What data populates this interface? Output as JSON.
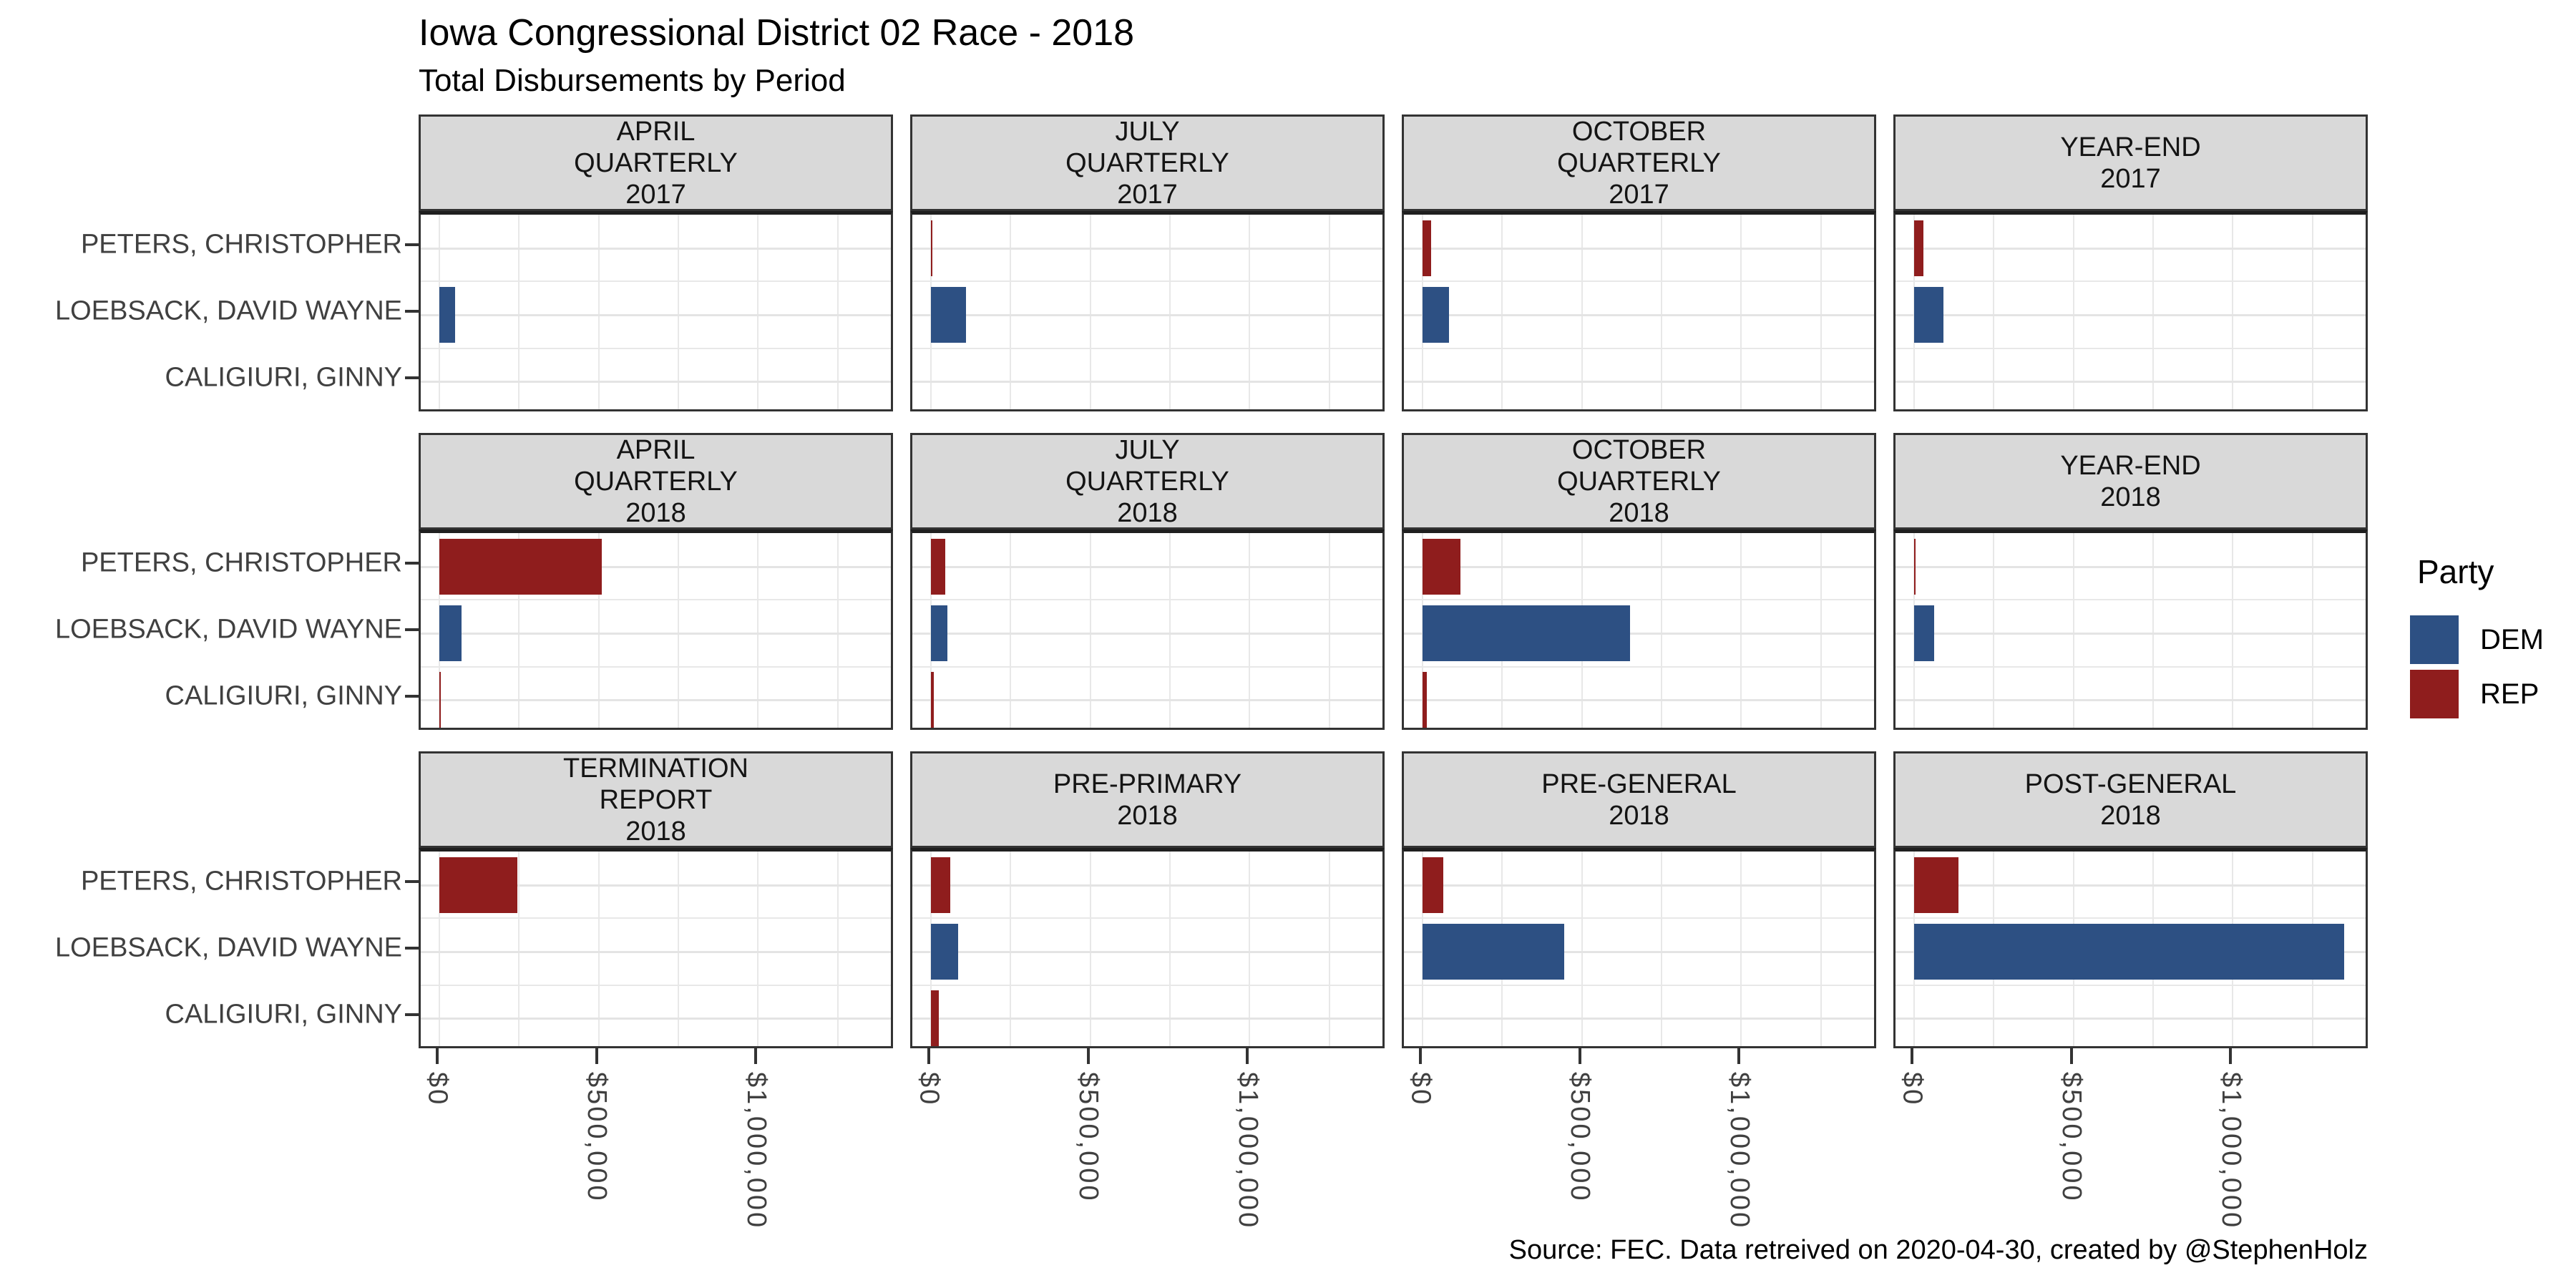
{
  "title": "Iowa Congressional District 02 Race - 2018",
  "subtitle": "Total Disbursements by Period",
  "caption": "Source: FEC. Data retreived on 2020-04-30, created by @StephenHolz",
  "legend": {
    "title": "Party",
    "items": [
      {
        "label": "DEM",
        "color": "#2d5083"
      },
      {
        "label": "REP",
        "color": "#8f1d1d"
      }
    ]
  },
  "colors": {
    "dem": "#2d5083",
    "rep": "#8f1d1d",
    "strip_fill": "#d9d9d9",
    "panel_border": "#333333",
    "gridline": "#e8e8e8",
    "axis_text": "#404040"
  },
  "chart_data": {
    "type": "bar",
    "orientation": "horizontal",
    "unit": "USD",
    "title": "Iowa Congressional District 02 Race - 2018",
    "subtitle": "Total Disbursements by Period",
    "x_axis": {
      "tick_values": [
        0,
        500000,
        1000000
      ],
      "tick_labels": [
        "$0",
        "$500,000",
        "$1,000,000"
      ],
      "max": 1430000,
      "grid_step": 250000
    },
    "candidates": [
      {
        "name": "PETERS, CHRISTOPHER",
        "party": "REP"
      },
      {
        "name": "LOEBSACK, DAVID WAYNE",
        "party": "DEM"
      },
      {
        "name": "CALIGIURI, GINNY",
        "party": "REP"
      }
    ],
    "facets": [
      {
        "label_lines": [
          "APRIL",
          "QUARTERLY",
          "2017"
        ],
        "values": [
          0,
          49000,
          0
        ]
      },
      {
        "label_lines": [
          "JULY",
          "QUARTERLY",
          "2017"
        ],
        "values": [
          3000,
          110000,
          0
        ]
      },
      {
        "label_lines": [
          "OCTOBER",
          "QUARTERLY",
          "2017"
        ],
        "values": [
          28000,
          84000,
          0
        ]
      },
      {
        "label_lines": [
          "YEAR-END",
          "2017"
        ],
        "values": [
          30000,
          92000,
          0
        ]
      },
      {
        "label_lines": [
          "APRIL",
          "QUARTERLY",
          "2018"
        ],
        "values": [
          510000,
          70000,
          3000
        ]
      },
      {
        "label_lines": [
          "JULY",
          "QUARTERLY",
          "2018"
        ],
        "values": [
          44000,
          52000,
          10000
        ]
      },
      {
        "label_lines": [
          "OCTOBER",
          "QUARTERLY",
          "2018"
        ],
        "values": [
          120000,
          650000,
          13000
        ]
      },
      {
        "label_lines": [
          "YEAR-END",
          "2018"
        ],
        "values": [
          2000,
          62000,
          0
        ]
      },
      {
        "label_lines": [
          "TERMINATION",
          "REPORT",
          "2018"
        ],
        "values": [
          245000,
          0,
          0
        ]
      },
      {
        "label_lines": [
          "PRE-PRIMARY",
          "2018"
        ],
        "values": [
          60000,
          85000,
          25000
        ]
      },
      {
        "label_lines": [
          "PRE-GENERAL",
          "2018"
        ],
        "values": [
          64000,
          445000,
          0
        ]
      },
      {
        "label_lines": [
          "POST-GENERAL",
          "2018"
        ],
        "values": [
          140000,
          1350000,
          0
        ]
      }
    ]
  }
}
